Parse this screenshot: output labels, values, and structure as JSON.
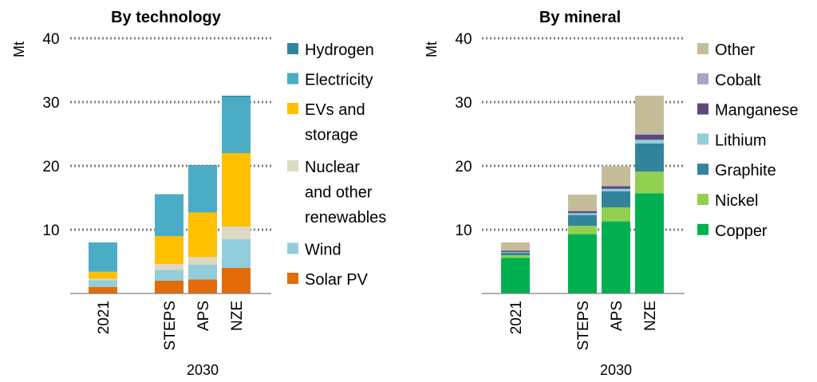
{
  "chart_data": [
    {
      "type": "bar",
      "stacked": true,
      "title": "By technology",
      "ylabel": "Mt",
      "xlabel": "2030",
      "ylim": [
        0,
        40
      ],
      "yticks": [
        10,
        20,
        30,
        40
      ],
      "grid": "horizontal dotted",
      "legend_position": "right",
      "categories": [
        "2021",
        "STEPS",
        "APS",
        "NZE"
      ],
      "group_label": "2030",
      "group_categories": [
        "STEPS",
        "APS",
        "NZE"
      ],
      "series": [
        {
          "name": "Solar PV",
          "color": "#E36C0A",
          "values": [
            1.0,
            2.0,
            2.2,
            4.0
          ]
        },
        {
          "name": "Wind",
          "color": "#92CDDC",
          "values": [
            1.1,
            1.7,
            2.3,
            4.5
          ]
        },
        {
          "name": "Nuclear and other renewables",
          "color": "#DDD9C4",
          "values": [
            0.2,
            0.9,
            1.2,
            2.0
          ]
        },
        {
          "name": "EVs and storage",
          "color": "#FFC000",
          "values": [
            1.1,
            4.4,
            7.0,
            11.5
          ]
        },
        {
          "name": "Electricity",
          "color": "#4BACC6",
          "values": [
            4.6,
            6.5,
            7.3,
            8.8
          ]
        },
        {
          "name": "Hydrogen",
          "color": "#31849B",
          "values": [
            0.0,
            0.05,
            0.1,
            0.2
          ]
        }
      ],
      "legend_order": [
        {
          "lines": [
            "Hydrogen"
          ],
          "color": "#31849B"
        },
        {
          "lines": [
            "Electricity"
          ],
          "color": "#4BACC6"
        },
        {
          "lines": [
            "EVs and",
            "storage"
          ],
          "color": "#FFC000"
        },
        {
          "lines": [
            "Nuclear",
            "and other",
            "renewables"
          ],
          "color": "#DDD9C4"
        },
        {
          "lines": [
            "Wind"
          ],
          "color": "#92CDDC"
        },
        {
          "lines": [
            "Solar PV"
          ],
          "color": "#E36C0A"
        }
      ]
    },
    {
      "type": "bar",
      "stacked": true,
      "title": "By mineral",
      "ylabel": "Mt",
      "xlabel": "2030",
      "ylim": [
        0,
        40
      ],
      "yticks": [
        10,
        20,
        30,
        40
      ],
      "grid": "horizontal dotted",
      "legend_position": "right",
      "categories": [
        "2021",
        "STEPS",
        "APS",
        "NZE"
      ],
      "group_label": "2030",
      "group_categories": [
        "STEPS",
        "APS",
        "NZE"
      ],
      "series": [
        {
          "name": "Copper",
          "color": "#00B050",
          "values": [
            5.6,
            9.3,
            11.3,
            15.7
          ]
        },
        {
          "name": "Nickel",
          "color": "#92D050",
          "values": [
            0.4,
            1.3,
            2.2,
            3.4
          ]
        },
        {
          "name": "Graphite",
          "color": "#31849B",
          "values": [
            0.4,
            1.7,
            2.5,
            4.4
          ]
        },
        {
          "name": "Lithium",
          "color": "#92CDDC",
          "values": [
            0.1,
            0.3,
            0.4,
            0.6
          ]
        },
        {
          "name": "Manganese",
          "color": "#60497A",
          "values": [
            0.2,
            0.3,
            0.4,
            0.8
          ]
        },
        {
          "name": "Cobalt",
          "color": "#B1A0C7",
          "values": [
            0.05,
            0.1,
            0.15,
            0.2
          ]
        },
        {
          "name": "Other",
          "color": "#C4BD97",
          "values": [
            1.25,
            2.5,
            3.0,
            5.9
          ]
        }
      ],
      "legend_order": [
        {
          "lines": [
            "Other"
          ],
          "color": "#C4BD97"
        },
        {
          "lines": [
            "Cobalt"
          ],
          "color": "#B1A0C7"
        },
        {
          "lines": [
            "Manganese"
          ],
          "color": "#60497A"
        },
        {
          "lines": [
            "Lithium"
          ],
          "color": "#92CDDC"
        },
        {
          "lines": [
            "Graphite"
          ],
          "color": "#31849B"
        },
        {
          "lines": [
            "Nickel"
          ],
          "color": "#92D050"
        },
        {
          "lines": [
            "Copper"
          ],
          "color": "#00B050"
        }
      ]
    }
  ]
}
